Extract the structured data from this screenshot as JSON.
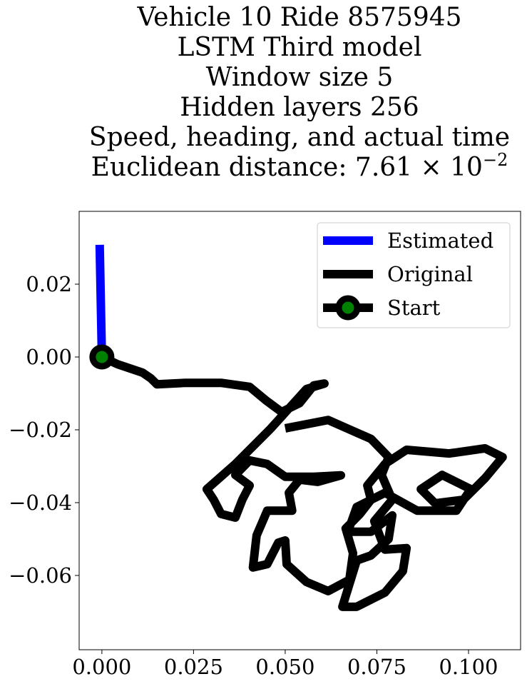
{
  "chart_data": {
    "type": "line",
    "title": [
      "Vehicle 10 Ride 8575945",
      "LSTM Third model",
      "Window size 5",
      "Hidden layers 256",
      "Speed, heading, and actual time",
      "Euclidean distance: 7.61 × 10"
    ],
    "title_superscript": "−2",
    "xlim": [
      -0.0062,
      0.1142
    ],
    "ylim": [
      -0.0804,
      0.04
    ],
    "xticks": [
      {
        "value": 0,
        "label": "0.000"
      },
      {
        "value": 0.025,
        "label": "0.025"
      },
      {
        "value": 0.05,
        "label": "0.050"
      },
      {
        "value": 0.075,
        "label": "0.075"
      },
      {
        "value": 0.1,
        "label": "0.100"
      }
    ],
    "yticks": [
      {
        "value": -0.06,
        "label": "−0.06"
      },
      {
        "value": -0.04,
        "label": "−0.04"
      },
      {
        "value": -0.02,
        "label": "−0.02"
      },
      {
        "value": 0,
        "label": "0.00"
      },
      {
        "value": 0.02,
        "label": "0.02"
      }
    ],
    "legend": "upper right",
    "series": [
      {
        "name": "Estimated",
        "color": "#0000ff",
        "x": [
          0,
          -0.0006
        ],
        "values": [
          0,
          0.0308
        ]
      },
      {
        "name": "Original",
        "color": "#000000",
        "x": [
          0,
          0.0043,
          0.0111,
          0.0134,
          0.015,
          0.0228,
          0.0325,
          0.0403,
          0.0446,
          0.049,
          0.0539,
          0.0578,
          0.0607,
          0.0558,
          0.0461,
          0.0364,
          0.0286,
          0.0305,
          0.0325,
          0.0364,
          0.0383,
          0.0403,
          0.0364,
          0.0403,
          0.0451,
          0.05,
          0.0578,
          0.0652,
          0.0589,
          0.0539,
          0.051,
          0.0519,
          0.0451,
          0.0422,
          0.0412,
          0.0451,
          0.0481,
          0.05,
          0.0504,
          0.0558,
          0.0617,
          0.0675,
          0.0685,
          0.0665,
          0.0704,
          0.0734,
          0.0724,
          0.0772,
          0.0831,
          0.0947,
          0.1045,
          0.1093,
          0.1045,
          0.0986,
          0.0909,
          0.087,
          0.0928,
          0.1006,
          0.0967,
          0.086,
          0.0772,
          0.0695,
          0.0671,
          0.0734,
          0.0792,
          0.0782,
          0.0734,
          0.0695,
          0.0656,
          0.0695,
          0.0772,
          0.0821,
          0.0831,
          0.0772,
          0.0743,
          0.0792,
          0.0763,
          0.0782,
          0.0734,
          0.0617,
          0.05
        ],
        "values": [
          0,
          -0.002,
          -0.0043,
          -0.0059,
          -0.0075,
          -0.0071,
          -0.0071,
          -0.0082,
          -0.0118,
          -0.0151,
          -0.0127,
          -0.0078,
          -0.0073,
          -0.0088,
          -0.0196,
          -0.0294,
          -0.0363,
          -0.0392,
          -0.0431,
          -0.0441,
          -0.0392,
          -0.0353,
          -0.0324,
          -0.0284,
          -0.0294,
          -0.0329,
          -0.0329,
          -0.0325,
          -0.0343,
          -0.0337,
          -0.0373,
          -0.0422,
          -0.0422,
          -0.049,
          -0.0578,
          -0.0569,
          -0.051,
          -0.0504,
          -0.0569,
          -0.0618,
          -0.0643,
          -0.0612,
          -0.0539,
          -0.0471,
          -0.0431,
          -0.0392,
          -0.0353,
          -0.0294,
          -0.0255,
          -0.0265,
          -0.0251,
          -0.0275,
          -0.0333,
          -0.0392,
          -0.0402,
          -0.0363,
          -0.0324,
          -0.0363,
          -0.0422,
          -0.0422,
          -0.0373,
          -0.0412,
          -0.048,
          -0.048,
          -0.0435,
          -0.05,
          -0.0545,
          -0.0559,
          -0.0686,
          -0.0686,
          -0.0647,
          -0.0588,
          -0.0525,
          -0.0529,
          -0.0451,
          -0.0392,
          -0.0324,
          -0.0275,
          -0.0225,
          -0.0173,
          -0.0196
        ]
      },
      {
        "name": "Start",
        "color": "#000000",
        "marker_face": "#008000",
        "x": [
          0
        ],
        "values": [
          0
        ]
      }
    ]
  }
}
